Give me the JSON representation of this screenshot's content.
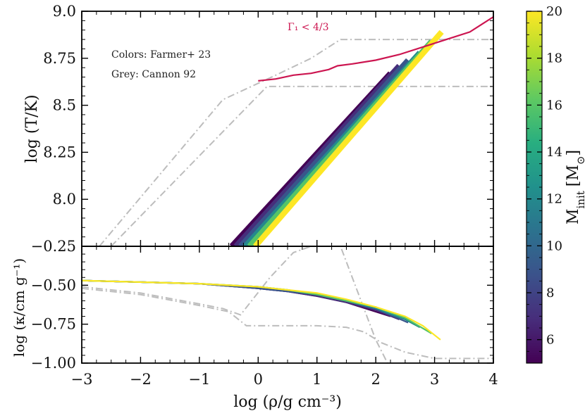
{
  "chart_data": {
    "type": "line",
    "xlabel": "log (ρ/g cm⁻³)",
    "xlim": [
      -3,
      4
    ],
    "x_ticks": [
      -3,
      -2,
      -1,
      0,
      1,
      2,
      3,
      4
    ],
    "x_tick_labels": [
      "−3",
      "−2",
      "−1",
      "0",
      "1",
      "2",
      "3",
      "4"
    ],
    "top_panel": {
      "ylabel": "log (T/K)",
      "ylim": [
        7.75,
        9.0
      ],
      "y_ticks": [
        8.0,
        8.25,
        8.5,
        8.75,
        9.0
      ],
      "y_tick_labels": [
        "8.0",
        "8.25",
        "8.5",
        "8.75",
        "9.0"
      ],
      "annotations": {
        "gamma": "Γ₁ < 4/3",
        "colors_note": "Colors: Farmer+ 23",
        "grey_note": "Grey: Cannon 92"
      },
      "gamma_boundary": {
        "name": "Γ₁ < 4/3",
        "color": "#cc1550",
        "x": [
          0.0,
          0.3,
          0.6,
          0.9,
          1.2,
          1.35,
          1.6,
          2.0,
          2.4,
          2.8,
          3.0,
          3.3,
          3.6,
          3.8,
          4.0
        ],
        "y": [
          8.63,
          8.64,
          8.66,
          8.67,
          8.69,
          8.71,
          8.72,
          8.74,
          8.77,
          8.81,
          8.83,
          8.86,
          8.89,
          8.93,
          8.97
        ]
      },
      "grey_curves": [
        {
          "name": "Cannon 92 upper",
          "x": [
            -2.7,
            -0.6,
            0.3,
            0.9,
            1.2,
            1.4,
            2.0,
            3.0,
            4.0
          ],
          "y": [
            7.75,
            8.53,
            8.66,
            8.75,
            8.81,
            8.85,
            8.85,
            8.85,
            8.85
          ]
        },
        {
          "name": "Cannon 92 lower",
          "x": [
            -2.5,
            0.15,
            1.0,
            2.0,
            3.0,
            4.0
          ],
          "y": [
            7.75,
            8.6,
            8.6,
            8.6,
            8.6,
            8.6
          ]
        }
      ],
      "series": [
        {
          "name": "M = 5",
          "mass": 5,
          "x": [
            -0.45,
            2.25
          ],
          "y": [
            7.75,
            8.67
          ]
        },
        {
          "name": "M = 7",
          "mass": 7,
          "x": [
            -0.38,
            2.4
          ],
          "y": [
            7.75,
            8.71
          ]
        },
        {
          "name": "M = 9",
          "mass": 9,
          "x": [
            -0.3,
            2.55
          ],
          "y": [
            7.75,
            8.74
          ]
        },
        {
          "name": "M = 12",
          "mass": 12,
          "x": [
            -0.22,
            2.75
          ],
          "y": [
            7.75,
            8.78
          ]
        },
        {
          "name": "M = 16",
          "mass": 16,
          "x": [
            -0.15,
            2.95
          ],
          "y": [
            7.75,
            8.84
          ]
        },
        {
          "name": "M = 20",
          "mass": 20,
          "x": [
            -0.05,
            3.12
          ],
          "y": [
            7.75,
            8.89
          ]
        }
      ]
    },
    "bottom_panel": {
      "ylabel": "log (κ/cm g⁻¹)",
      "ylim": [
        -1.0,
        -0.25
      ],
      "y_ticks": [
        -1.0,
        -0.75,
        -0.5,
        -0.25
      ],
      "y_tick_labels": [
        "−1.00",
        "−0.75",
        "−0.50",
        "−0.25"
      ],
      "grey_curves": [
        {
          "name": "Cannon 92 A",
          "x": [
            -3.0,
            -2.0,
            -1.0,
            -0.6,
            -0.3,
            0.2,
            0.6,
            0.9,
            1.2,
            1.4,
            1.7,
            2.0,
            2.2
          ],
          "y": [
            -0.51,
            -0.55,
            -0.62,
            -0.65,
            -0.69,
            -0.45,
            -0.29,
            -0.25,
            -0.22,
            -0.25,
            -0.55,
            -0.85,
            -1.0
          ]
        },
        {
          "name": "Cannon 92 B",
          "x": [
            -3.0,
            -2.0,
            -1.0,
            -0.5,
            -0.2,
            0.5,
            1.0,
            1.5,
            1.8,
            2.1,
            2.5,
            3.0,
            4.0
          ],
          "y": [
            -0.52,
            -0.56,
            -0.63,
            -0.67,
            -0.76,
            -0.76,
            -0.76,
            -0.77,
            -0.8,
            -0.87,
            -0.93,
            -0.97,
            -0.97
          ]
        }
      ],
      "series": [
        {
          "name": "M = 5",
          "mass": 5,
          "x": [
            -3.0,
            -2.0,
            -1.0,
            0.0,
            0.5,
            1.0,
            1.5,
            2.0,
            2.25
          ],
          "y": [
            -0.47,
            -0.48,
            -0.49,
            -0.52,
            -0.54,
            -0.57,
            -0.61,
            -0.67,
            -0.7
          ]
        },
        {
          "name": "M = 7",
          "mass": 7,
          "x": [
            -3.0,
            -2.0,
            -1.0,
            0.0,
            0.5,
            1.0,
            1.5,
            2.0,
            2.4
          ],
          "y": [
            -0.47,
            -0.48,
            -0.49,
            -0.52,
            -0.54,
            -0.57,
            -0.61,
            -0.66,
            -0.72
          ]
        },
        {
          "name": "M = 9",
          "mass": 9,
          "x": [
            -3.0,
            -2.0,
            -1.0,
            0.0,
            0.5,
            1.0,
            1.5,
            2.0,
            2.55
          ],
          "y": [
            -0.47,
            -0.48,
            -0.49,
            -0.52,
            -0.54,
            -0.56,
            -0.6,
            -0.65,
            -0.74
          ]
        },
        {
          "name": "M = 12",
          "mass": 12,
          "x": [
            -3.0,
            -2.0,
            -1.0,
            0.0,
            0.5,
            1.0,
            1.5,
            2.0,
            2.5,
            2.75
          ],
          "y": [
            -0.47,
            -0.48,
            -0.49,
            -0.51,
            -0.53,
            -0.56,
            -0.6,
            -0.65,
            -0.72,
            -0.77
          ]
        },
        {
          "name": "M = 16",
          "mass": 16,
          "x": [
            -3.0,
            -2.0,
            -1.0,
            0.0,
            0.5,
            1.0,
            1.5,
            2.0,
            2.5,
            2.95
          ],
          "y": [
            -0.47,
            -0.48,
            -0.49,
            -0.51,
            -0.53,
            -0.56,
            -0.6,
            -0.64,
            -0.71,
            -0.81
          ]
        },
        {
          "name": "M = 20",
          "mass": 20,
          "x": [
            -3.0,
            -2.0,
            -1.0,
            0.0,
            0.5,
            1.0,
            1.5,
            2.0,
            2.5,
            2.8,
            3.1
          ],
          "y": [
            -0.47,
            -0.48,
            -0.49,
            -0.51,
            -0.53,
            -0.55,
            -0.59,
            -0.64,
            -0.7,
            -0.76,
            -0.85
          ]
        }
      ]
    },
    "colorbar": {
      "label": "M_init [M☉]",
      "label_main": "M",
      "label_sub": "init",
      "label_unit_open": "[M",
      "label_unit_sub": "⊙",
      "label_unit_close": "]",
      "range": [
        5,
        20
      ],
      "ticks": [
        6,
        8,
        10,
        12,
        14,
        16,
        18,
        20
      ],
      "tick_labels": [
        "6",
        "8",
        "10",
        "12",
        "14",
        "16",
        "18",
        "20"
      ],
      "colormap": "viridis"
    },
    "colors": {
      "grey": "#bdbdbd",
      "gamma": "#cc1550"
    }
  }
}
